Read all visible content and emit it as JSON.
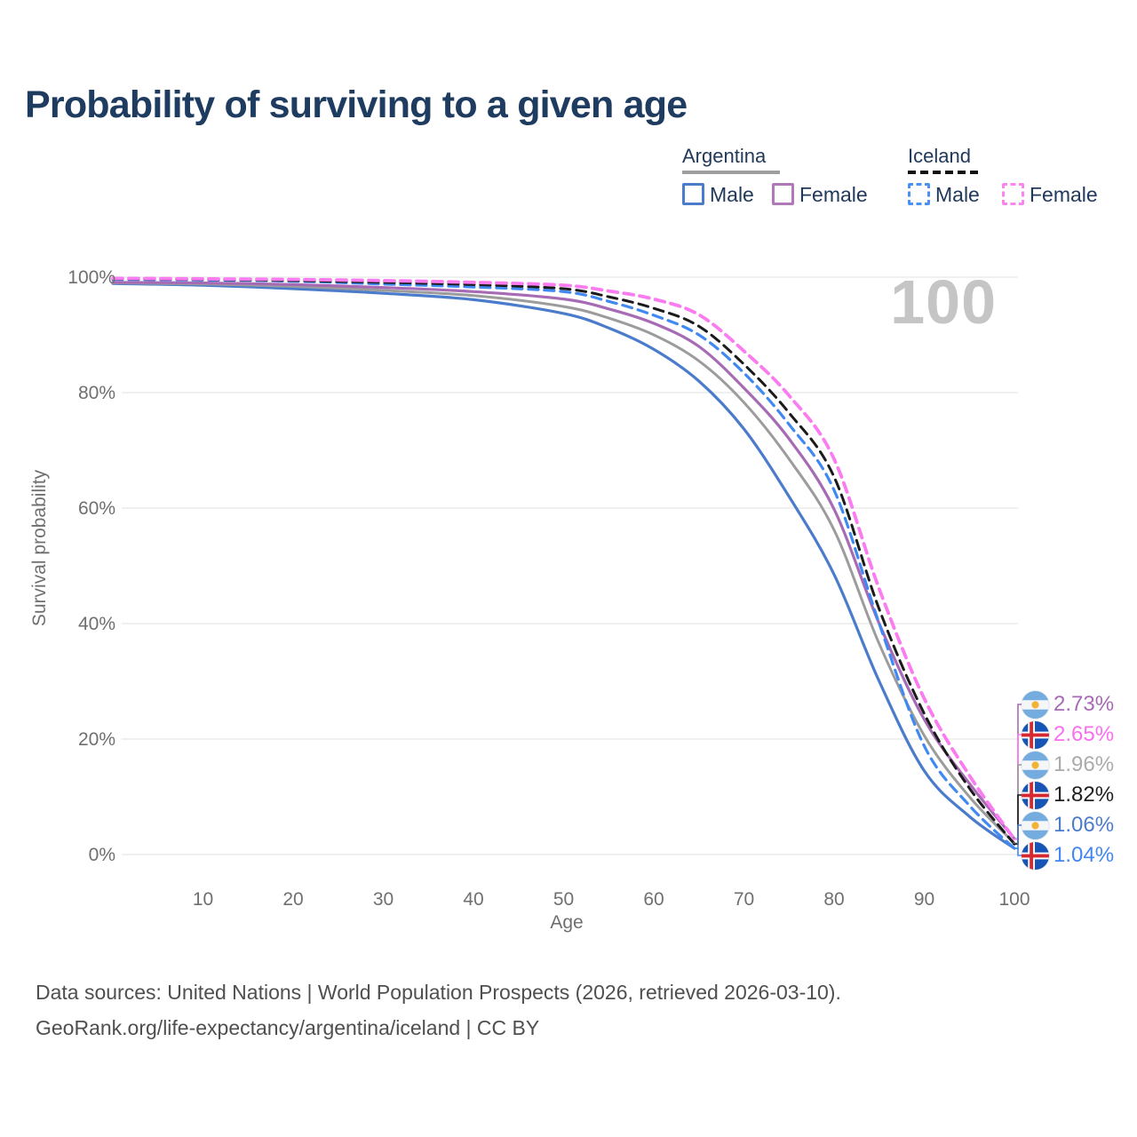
{
  "title": "Probability of surviving to a given age",
  "watermark": "100",
  "legend": {
    "groups": [
      {
        "label": "Argentina",
        "line_style": "solid",
        "underline_color": "#9e9e9e",
        "items": [
          {
            "label": "Male",
            "color": "#4b7ccc"
          },
          {
            "label": "Female",
            "color": "#b078b8"
          }
        ]
      },
      {
        "label": "Iceland",
        "line_style": "dashed",
        "underline_color": "#111111",
        "items": [
          {
            "label": "Male",
            "color": "#4a90f5"
          },
          {
            "label": "Female",
            "color": "#fb84f0"
          }
        ]
      }
    ]
  },
  "chart_data": {
    "type": "line",
    "title": "Probability of surviving to a given age",
    "xlabel": "Age",
    "ylabel": "Survival probability",
    "xlim": [
      0,
      100
    ],
    "ylim": [
      0,
      100
    ],
    "grid": "horizontal",
    "legend_position": "top-right",
    "x_ticks": [
      10,
      20,
      30,
      40,
      50,
      60,
      70,
      80,
      90,
      100
    ],
    "y_ticks": [
      {
        "value": 0,
        "label": "0%"
      },
      {
        "value": 20,
        "label": "20%"
      },
      {
        "value": 40,
        "label": "40%"
      },
      {
        "value": 60,
        "label": "60%"
      },
      {
        "value": 80,
        "label": "80%"
      },
      {
        "value": 100,
        "label": "100%"
      }
    ],
    "ages": [
      0,
      10,
      20,
      30,
      40,
      50,
      55,
      60,
      65,
      70,
      75,
      80,
      85,
      90,
      95,
      100
    ],
    "series": [
      {
        "id": "argentina-male",
        "name": "Argentina Male",
        "color": "#4b7ccc",
        "dash": "solid",
        "width": 3.2,
        "values": [
          98.9,
          98.6,
          98.0,
          97.2,
          96.1,
          93.7,
          91.2,
          87.5,
          82.0,
          73.7,
          62.0,
          48.5,
          30.0,
          14.5,
          6.6,
          1.06
        ]
      },
      {
        "id": "argentina-all",
        "name": "Argentina Both sexes",
        "color": "#9c9c9c",
        "dash": "solid",
        "width": 3.0,
        "values": [
          99.0,
          98.8,
          98.4,
          97.7,
          96.8,
          94.9,
          92.9,
          90.0,
          85.5,
          78.3,
          68.5,
          56.2,
          36.5,
          20.6,
          10.0,
          1.96
        ]
      },
      {
        "id": "argentina-female",
        "name": "Argentina Female",
        "color": "#a76ab4",
        "dash": "solid",
        "width": 3.2,
        "values": [
          99.1,
          99.0,
          98.7,
          98.2,
          97.5,
          96.2,
          94.5,
          92.0,
          88.0,
          80.8,
          72.0,
          59.8,
          40.0,
          23.4,
          12.3,
          2.73
        ]
      },
      {
        "id": "iceland-male",
        "name": "Iceland Male",
        "color": "#4089f2",
        "dash": "dashed",
        "width": 3.2,
        "values": [
          99.6,
          99.5,
          99.3,
          98.8,
          98.3,
          97.5,
          95.8,
          93.4,
          90.0,
          83.4,
          74.5,
          63.1,
          40.0,
          18.8,
          8.5,
          1.04
        ]
      },
      {
        "id": "iceland-all",
        "name": "Iceland Both sexes",
        "color": "#1b1b1b",
        "dash": "dashed",
        "width": 3.0,
        "values": [
          99.7,
          99.6,
          99.4,
          99.1,
          98.7,
          98.0,
          96.6,
          94.6,
          91.5,
          84.9,
          76.5,
          65.4,
          42.5,
          24.4,
          11.5,
          1.82
        ]
      },
      {
        "id": "iceland-female",
        "name": "Iceland Female",
        "color": "#fb7bf0",
        "dash": "dashed",
        "width": 3.8,
        "values": [
          99.8,
          99.7,
          99.6,
          99.4,
          99.1,
          98.6,
          97.6,
          96.2,
          93.5,
          87.2,
          79.5,
          68.5,
          46.0,
          27.0,
          13.7,
          2.65
        ]
      }
    ],
    "end_labels": [
      {
        "series": "argentina-female",
        "flag": "argentina",
        "value": "2.73%",
        "color": "#a76ab4"
      },
      {
        "series": "iceland-female",
        "flag": "iceland",
        "value": "2.65%",
        "color": "#fb6ef0"
      },
      {
        "series": "argentina-all",
        "flag": "argentina",
        "value": "1.96%",
        "color": "#ababab"
      },
      {
        "series": "iceland-all",
        "flag": "iceland",
        "value": "1.82%",
        "color": "#1f1f1f"
      },
      {
        "series": "argentina-male",
        "flag": "argentina",
        "value": "1.06%",
        "color": "#4b7ccc"
      },
      {
        "series": "iceland-male",
        "flag": "iceland",
        "value": "1.04%",
        "color": "#4286ef"
      }
    ]
  },
  "footer": {
    "line1": "Data sources: United Nations | World Population Prospects (2026, retrieved 2026-03-10).",
    "line2": "GeoRank.org/life-expectancy/argentina/iceland | CC BY"
  }
}
